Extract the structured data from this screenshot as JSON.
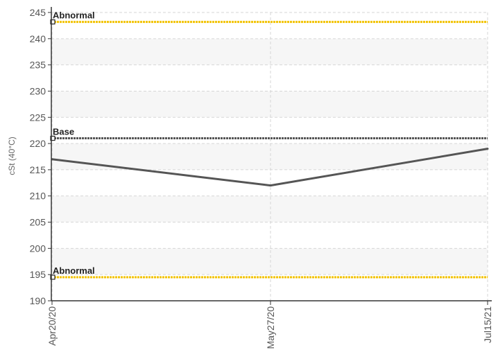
{
  "chart_data": {
    "type": "line",
    "title": "",
    "ylabel": "cSt (40°C)",
    "xlabel": "",
    "ylim": [
      190,
      245
    ],
    "yticks": [
      190,
      195,
      200,
      205,
      210,
      215,
      220,
      225,
      230,
      235,
      240,
      245
    ],
    "categories": [
      "Apr20/20",
      "May27/20",
      "Jul15/21"
    ],
    "series": [
      {
        "values": [
          217,
          212,
          219
        ],
        "color": "#555555"
      }
    ],
    "reference_lines": [
      {
        "label": "Abnormal",
        "value": 243.2,
        "color": "#f2c200"
      },
      {
        "label": "Base",
        "value": 221,
        "color": "#555555"
      },
      {
        "label": "Abnormal",
        "value": 194.5,
        "color": "#f2c200"
      }
    ],
    "grid": true,
    "legend": "none"
  }
}
